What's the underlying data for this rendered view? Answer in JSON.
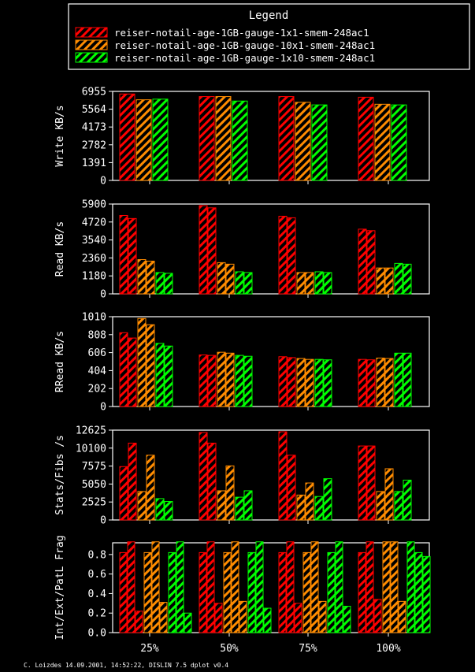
{
  "legend": {
    "title": "Legend",
    "entries": [
      {
        "label": "reiser-notail-age-1GB-gauge-1x1-smem-248ac1",
        "color": "#ff0000"
      },
      {
        "label": "reiser-notail-age-1GB-gauge-10x1-smem-248ac1",
        "color": "#ff8c00"
      },
      {
        "label": "reiser-notail-age-1GB-gauge-1x10-smem-248ac1",
        "color": "#00ff00"
      }
    ]
  },
  "footer": "C. Loizdes 14.09.2001, 14:52:22, DISLIN 7.5 dplot v0.4",
  "chart_data": [
    {
      "type": "bar",
      "ylabel": "Write KB/s",
      "categories": [
        "25%",
        "50%",
        "75%",
        "100%"
      ],
      "yticks": [
        "0",
        "1391",
        "2782",
        "4173",
        "5564",
        "6955"
      ],
      "ylim": [
        0,
        6955
      ],
      "series": [
        {
          "name": "reiser-notail-age-1GB-gauge-1x1-smem-248ac1",
          "color": "#ff0000",
          "values": [
            [
              6750
            ],
            [
              6550
            ],
            [
              6550
            ],
            [
              6500
            ]
          ]
        },
        {
          "name": "reiser-notail-age-1GB-gauge-10x1-smem-248ac1",
          "color": "#ff8c00",
          "values": [
            [
              6300
            ],
            [
              6550
            ],
            [
              6100
            ],
            [
              5950
            ]
          ]
        },
        {
          "name": "reiser-notail-age-1GB-gauge-1x10-smem-248ac1",
          "color": "#00ff00",
          "values": [
            [
              6350
            ],
            [
              6200
            ],
            [
              5900
            ],
            [
              5900
            ]
          ]
        }
      ]
    },
    {
      "type": "bar",
      "ylabel": "Read KB/s",
      "categories": [
        "25%",
        "50%",
        "75%",
        "100%"
      ],
      "yticks": [
        "0",
        "1180",
        "2360",
        "3540",
        "4720",
        "5900"
      ],
      "ylim": [
        0,
        5900
      ],
      "series": [
        {
          "name": "reiser-notail-age-1GB-gauge-1x1-smem-248ac1",
          "color": "#ff0000",
          "values": [
            [
              5150,
              4950
            ],
            [
              5800,
              5650
            ],
            [
              5100,
              5000
            ],
            [
              4250,
              4150
            ]
          ]
        },
        {
          "name": "reiser-notail-age-1GB-gauge-10x1-smem-248ac1",
          "color": "#ff8c00",
          "values": [
            [
              2250,
              2150
            ],
            [
              2050,
              1950
            ],
            [
              1400,
              1400
            ],
            [
              1700,
              1700
            ]
          ]
        },
        {
          "name": "reiser-notail-age-1GB-gauge-1x10-smem-248ac1",
          "color": "#00ff00",
          "values": [
            [
              1400,
              1350
            ],
            [
              1450,
              1400
            ],
            [
              1450,
              1400
            ],
            [
              2000,
              1950
            ]
          ]
        }
      ]
    },
    {
      "type": "bar",
      "ylabel": "RRead KB/s",
      "categories": [
        "25%",
        "50%",
        "75%",
        "100%"
      ],
      "yticks": [
        "0",
        "202",
        "404",
        "606",
        "808",
        "1010"
      ],
      "ylim": [
        0,
        1010
      ],
      "series": [
        {
          "name": "reiser-notail-age-1GB-gauge-1x1-smem-248ac1",
          "color": "#ff0000",
          "values": [
            [
              830,
              770
            ],
            [
              580,
              575
            ],
            [
              560,
              550
            ],
            [
              530,
              525
            ]
          ]
        },
        {
          "name": "reiser-notail-age-1GB-gauge-10x1-smem-248ac1",
          "color": "#ff8c00",
          "values": [
            [
              990,
              920
            ],
            [
              610,
              600
            ],
            [
              540,
              530
            ],
            [
              545,
              540
            ]
          ]
        },
        {
          "name": "reiser-notail-age-1GB-gauge-1x10-smem-248ac1",
          "color": "#00ff00",
          "values": [
            [
              710,
              680
            ],
            [
              575,
              565
            ],
            [
              530,
              525
            ],
            [
              600,
              600
            ]
          ]
        }
      ]
    },
    {
      "type": "bar",
      "ylabel": "Stats/Fibs /s",
      "categories": [
        "25%",
        "50%",
        "75%",
        "100%"
      ],
      "yticks": [
        "0",
        "2525",
        "5050",
        "7575",
        "10100",
        "12625"
      ],
      "ylim": [
        0,
        12625
      ],
      "series": [
        {
          "name": "reiser-notail-age-1GB-gauge-1x1-smem-248ac1",
          "color": "#ff0000",
          "values": [
            [
              7500,
              10800
            ],
            [
              12300,
              10800
            ],
            [
              12400,
              9100
            ],
            [
              10400,
              10400
            ]
          ]
        },
        {
          "name": "reiser-notail-age-1GB-gauge-10x1-smem-248ac1",
          "color": "#ff8c00",
          "values": [
            [
              4000,
              9100
            ],
            [
              4100,
              7600
            ],
            [
              3500,
              5200
            ],
            [
              4000,
              7200
            ]
          ]
        },
        {
          "name": "reiser-notail-age-1GB-gauge-1x10-smem-248ac1",
          "color": "#00ff00",
          "values": [
            [
              3000,
              2600
            ],
            [
              3200,
              4100
            ],
            [
              3300,
              5800
            ],
            [
              4000,
              5600
            ]
          ]
        }
      ]
    },
    {
      "type": "bar",
      "ylabel": "Int/Ext/PatL Frag",
      "categories": [
        "25%",
        "50%",
        "75%",
        "100%"
      ],
      "yticks": [
        "0.0",
        "0.2",
        "0.4",
        "0.6",
        "0.8"
      ],
      "ylim": [
        0,
        0.92
      ],
      "series": [
        {
          "name": "reiser-notail-age-1GB-gauge-1x1-smem-248ac1",
          "color": "#ff0000",
          "values": [
            [
              0.82,
              0.93,
              0.22
            ],
            [
              0.82,
              0.93,
              0.3
            ],
            [
              0.82,
              0.93,
              0.3
            ],
            [
              0.82,
              0.93,
              0.34
            ]
          ]
        },
        {
          "name": "reiser-notail-age-1GB-gauge-10x1-smem-248ac1",
          "color": "#ff8c00",
          "values": [
            [
              0.82,
              0.93,
              0.31
            ],
            [
              0.82,
              0.93,
              0.32
            ],
            [
              0.82,
              0.93,
              0.32
            ],
            [
              0.93,
              0.93,
              0.32
            ]
          ]
        },
        {
          "name": "reiser-notail-age-1GB-gauge-1x10-smem-248ac1",
          "color": "#00ff00",
          "values": [
            [
              0.82,
              0.93,
              0.2
            ],
            [
              0.82,
              0.93,
              0.25
            ],
            [
              0.82,
              0.93,
              0.27
            ],
            [
              0.93,
              0.82,
              0.78
            ]
          ]
        }
      ]
    }
  ]
}
